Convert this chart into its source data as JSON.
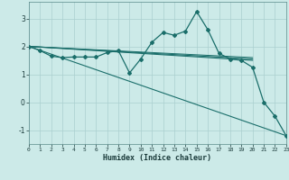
{
  "xlabel": "Humidex (Indice chaleur)",
  "background_color": "#cceae8",
  "grid_color": "#aacfcf",
  "line_color": "#1a6e6a",
  "xlim": [
    0,
    23
  ],
  "ylim": [
    -1.5,
    3.6
  ],
  "yticks": [
    -1,
    0,
    1,
    2,
    3
  ],
  "xticks": [
    0,
    1,
    2,
    3,
    4,
    5,
    6,
    7,
    8,
    9,
    10,
    11,
    12,
    13,
    14,
    15,
    16,
    17,
    18,
    19,
    20,
    21,
    22,
    23
  ],
  "series": [
    {
      "x": [
        0,
        1,
        2,
        3,
        4,
        5,
        6,
        7,
        8,
        9,
        10,
        11,
        12,
        13,
        14,
        15,
        16,
        17,
        18,
        19,
        20,
        21,
        22,
        23
      ],
      "y": [
        2.0,
        1.85,
        1.65,
        1.6,
        1.62,
        1.62,
        1.62,
        1.78,
        1.85,
        1.05,
        1.55,
        2.15,
        2.5,
        2.4,
        2.55,
        3.25,
        2.6,
        1.75,
        1.55,
        1.5,
        1.25,
        0.0,
        -0.5,
        -1.2
      ],
      "marker": "D",
      "markersize": 2.0,
      "linewidth": 0.9,
      "zorder": 5
    },
    {
      "x": [
        0,
        20
      ],
      "y": [
        2.0,
        1.5
      ],
      "marker": null,
      "linewidth": 0.8,
      "zorder": 3
    },
    {
      "x": [
        0,
        20
      ],
      "y": [
        2.0,
        1.55
      ],
      "marker": null,
      "linewidth": 0.8,
      "zorder": 3
    },
    {
      "x": [
        0,
        20
      ],
      "y": [
        2.0,
        1.6
      ],
      "marker": null,
      "linewidth": 0.7,
      "zorder": 3
    },
    {
      "x": [
        0,
        23
      ],
      "y": [
        2.0,
        -1.2
      ],
      "marker": null,
      "linewidth": 0.8,
      "zorder": 2
    }
  ]
}
